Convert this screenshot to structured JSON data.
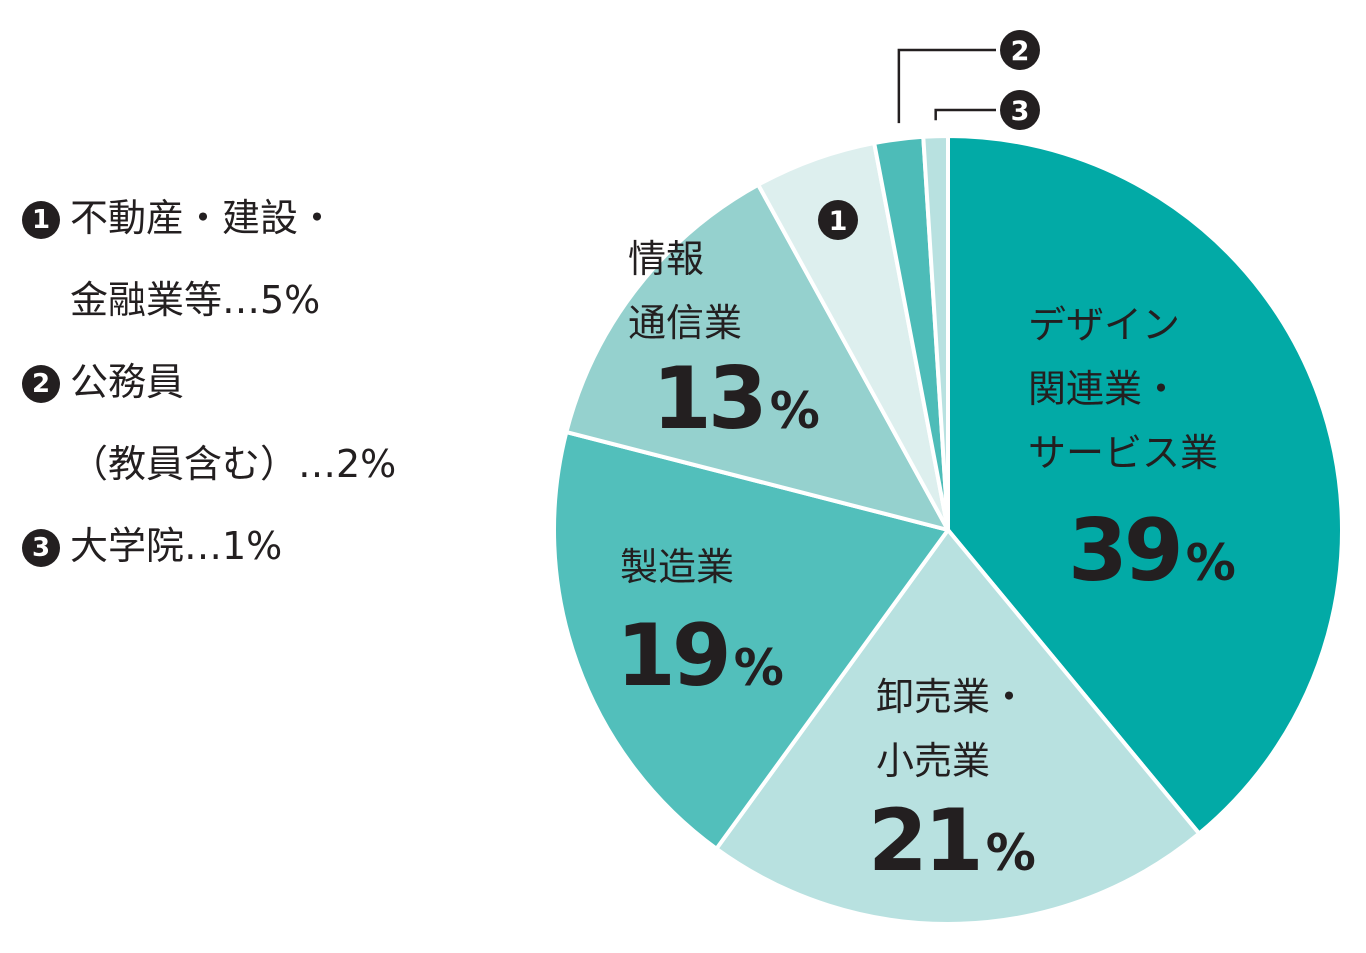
{
  "legend": [
    {
      "marker": "1",
      "line1": "不動産・建設・",
      "line2": "金融業等…5%"
    },
    {
      "marker": "2",
      "line1": "公務員",
      "line2": "（教員含む）…2%"
    },
    {
      "marker": "3",
      "line1": "大学院…1%",
      "line2": ""
    }
  ],
  "chart_data": {
    "type": "pie",
    "start": "top",
    "direction": "clockwise",
    "slices": [
      {
        "lines": [
          "デザイン",
          "関連業・",
          "サービス業"
        ],
        "value": 39,
        "pct_label": "39",
        "color": "#02aaa6"
      },
      {
        "lines": [
          "卸売業・",
          "小売業"
        ],
        "value": 21,
        "pct_label": "21",
        "color": "#b8e1e0"
      },
      {
        "lines": [
          "製造業"
        ],
        "value": 19,
        "pct_label": "19",
        "color": "#52bfbb"
      },
      {
        "lines": [
          "情報",
          "通信業"
        ],
        "value": 13,
        "pct_label": "13",
        "color": "#95d1ce"
      },
      {
        "lines": [],
        "marker": "1",
        "value": 5,
        "pct_label": "",
        "color": "#ddefee"
      },
      {
        "lines": [],
        "marker": "2",
        "value": 2,
        "pct_label": "",
        "color": "#4dbcb8"
      },
      {
        "lines": [],
        "marker": "3",
        "value": 1,
        "pct_label": "",
        "color": "#b8e1e0"
      }
    ],
    "percent_sign": "%"
  }
}
